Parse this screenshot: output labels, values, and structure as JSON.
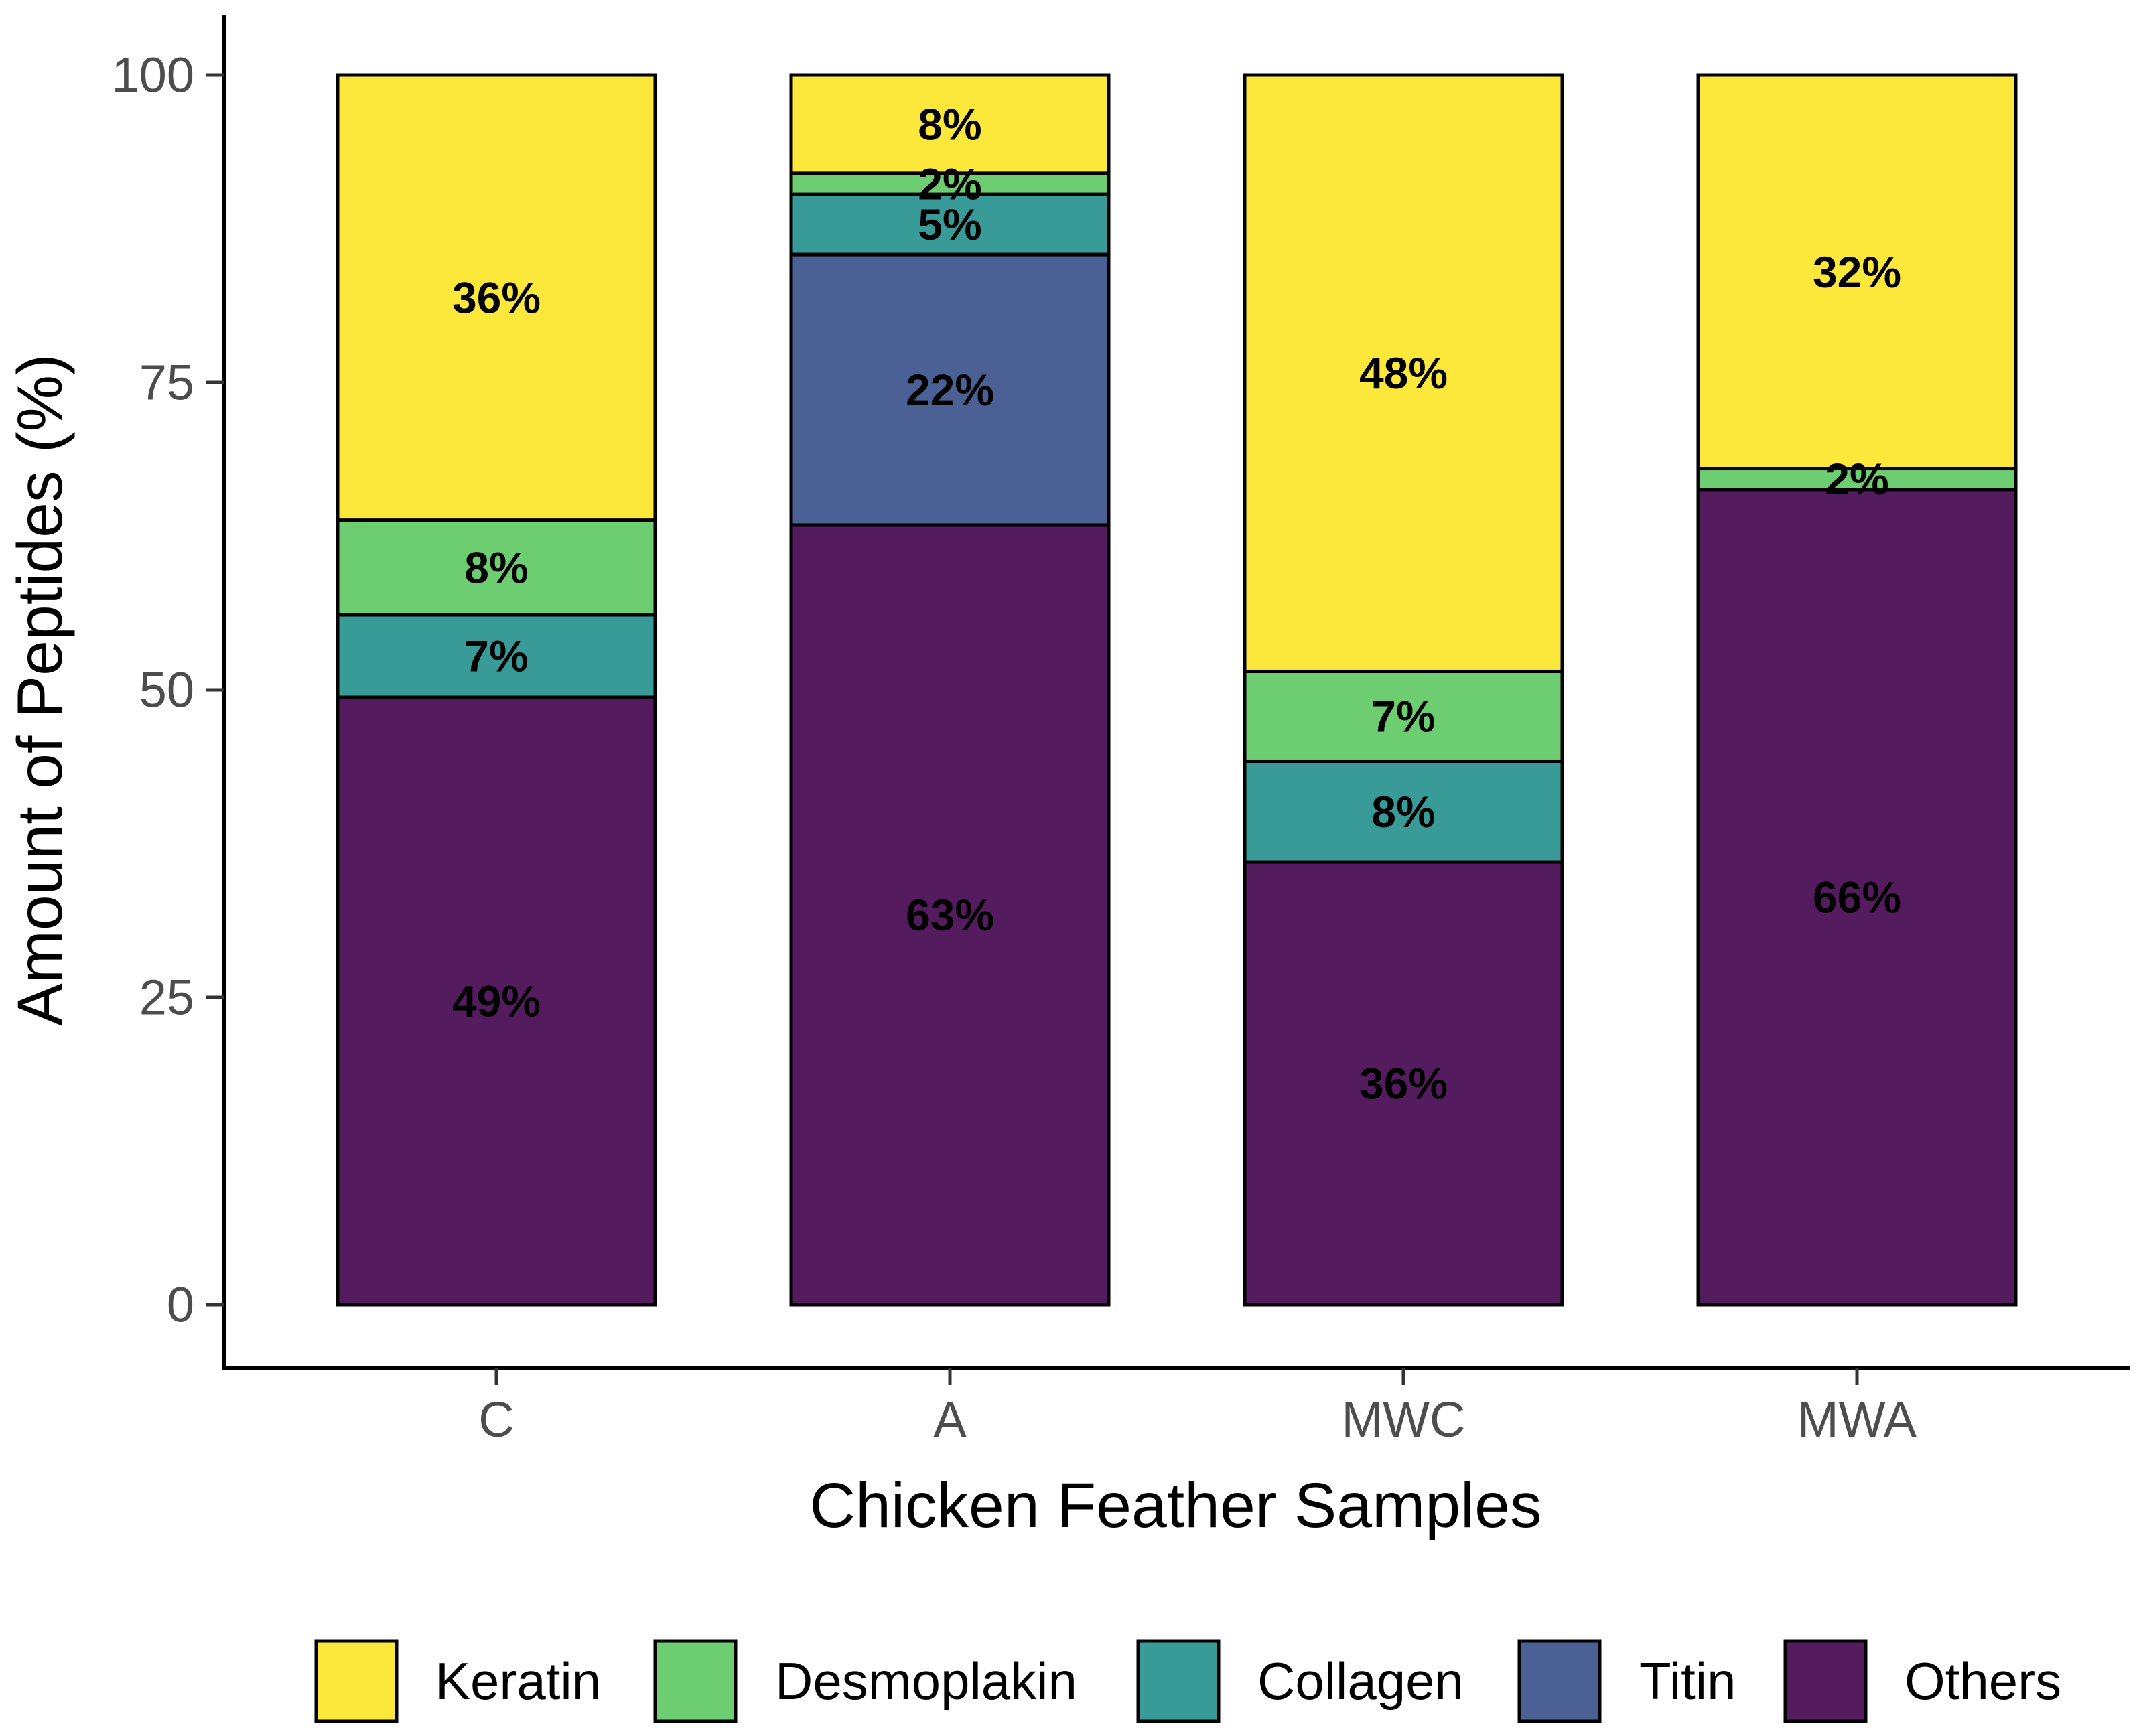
{
  "chart_data": {
    "type": "bar",
    "stacked": true,
    "categories": [
      "C",
      "A",
      "MWC",
      "MWA"
    ],
    "series": [
      {
        "name": "Others",
        "color": "#541b5e",
        "values": [
          49.4,
          63.4,
          36.0,
          66.3
        ],
        "labels": [
          "49%",
          "63%",
          "36%",
          "66%"
        ]
      },
      {
        "name": "Titin",
        "color": "#4b6195",
        "values": [
          0,
          22.0,
          0,
          0
        ],
        "labels": [
          "",
          "22%",
          "",
          ""
        ]
      },
      {
        "name": "Collagen",
        "color": "#399b97",
        "values": [
          6.7,
          4.9,
          8.2,
          0
        ],
        "labels": [
          "7%",
          "5%",
          "8%",
          ""
        ]
      },
      {
        "name": "Desmoplakin",
        "color": "#6dcd71",
        "values": [
          7.7,
          1.7,
          7.3,
          1.7
        ],
        "labels": [
          "8%",
          "2%",
          "7%",
          "2%"
        ]
      },
      {
        "name": "Keratin",
        "color": "#fbe83b",
        "values": [
          36.2,
          8.0,
          48.5,
          32.0
        ],
        "labels": [
          "36%",
          "8%",
          "48%",
          "32%"
        ]
      }
    ],
    "legend_order": [
      "Keratin",
      "Desmoplakin",
      "Collagen",
      "Titin",
      "Others"
    ],
    "legend_position": "bottom",
    "xlabel": "Chicken Feather Samples",
    "ylabel": "Amount of Peptides (%)",
    "ylim": [
      0,
      100
    ],
    "yticks": [
      0,
      25,
      50,
      75,
      100
    ],
    "grid": false
  }
}
